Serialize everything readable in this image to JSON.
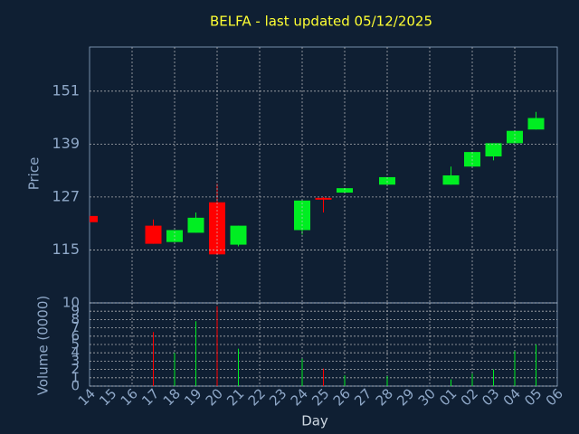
{
  "chart_data": {
    "type": "candlestick",
    "title": "BELFA - last updated 05/12/2025",
    "xlabel": "Day",
    "ylabel": "Price",
    "y2label": "Volume (0000)",
    "categories": [
      "14",
      "15",
      "16",
      "17",
      "18",
      "19",
      "20",
      "21",
      "22",
      "23",
      "24",
      "25",
      "26",
      "27",
      "28",
      "29",
      "30",
      "01",
      "02",
      "03",
      "04",
      "05",
      "06"
    ],
    "open": [
      122.7,
      null,
      null,
      120.5,
      116.8,
      118.9,
      125.8,
      116.2,
      null,
      null,
      119.5,
      126.8,
      128.0,
      null,
      129.8,
      null,
      null,
      129.8,
      133.9,
      136.2,
      139.2,
      142.3,
      null
    ],
    "high": [
      122.7,
      null,
      null,
      121.9,
      119.5,
      123.5,
      130.0,
      120.5,
      null,
      null,
      126.2,
      127.0,
      129.0,
      null,
      131.5,
      null,
      null,
      133.9,
      137.2,
      139.2,
      142.0,
      146.3,
      null
    ],
    "low": [
      121.3,
      null,
      null,
      116.4,
      116.8,
      118.9,
      114.0,
      115.8,
      null,
      null,
      118.5,
      123.5,
      128.0,
      null,
      129.8,
      null,
      null,
      129.8,
      133.9,
      135.3,
      139.2,
      142.3,
      null
    ],
    "close": [
      121.3,
      null,
      null,
      116.4,
      119.5,
      122.3,
      114.0,
      120.5,
      null,
      null,
      126.2,
      126.4,
      129.0,
      null,
      131.5,
      null,
      null,
      131.9,
      137.2,
      139.2,
      142.0,
      144.9,
      null
    ],
    "volume": [
      null,
      null,
      null,
      6.5,
      4.0,
      7.8,
      9.6,
      4.5,
      null,
      null,
      3.3,
      2.1,
      1.3,
      null,
      1.2,
      null,
      null,
      0.8,
      1.5,
      2.0,
      4.2,
      5.0,
      null
    ],
    "up_color": "#00ee22",
    "down_color": "#ff0000",
    "ylim": [
      103,
      161
    ],
    "yticks": [
      115,
      127,
      139,
      151
    ],
    "y2lim": [
      0,
      10
    ],
    "y2ticks": [
      0,
      1,
      2,
      3,
      4,
      5,
      6,
      7,
      8,
      9,
      10
    ],
    "grid": true
  }
}
